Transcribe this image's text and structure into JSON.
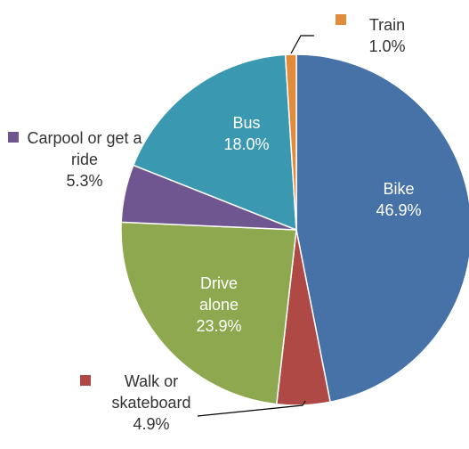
{
  "chart_data": {
    "type": "pie",
    "categories": [
      "Bike",
      "Walk or skateboard",
      "Drive alone",
      "Carpool or get a ride",
      "Bus",
      "Train"
    ],
    "values": [
      46.9,
      4.9,
      23.9,
      5.3,
      18.0,
      1.0
    ],
    "value_labels": [
      "46.9%",
      "4.9%",
      "23.9%",
      "5.3%",
      "18.0%",
      "1.0%"
    ],
    "colors": [
      "#4672a8",
      "#ae4945",
      "#8ea84f",
      "#6f5690",
      "#3a99b0",
      "#e28b3b"
    ]
  }
}
